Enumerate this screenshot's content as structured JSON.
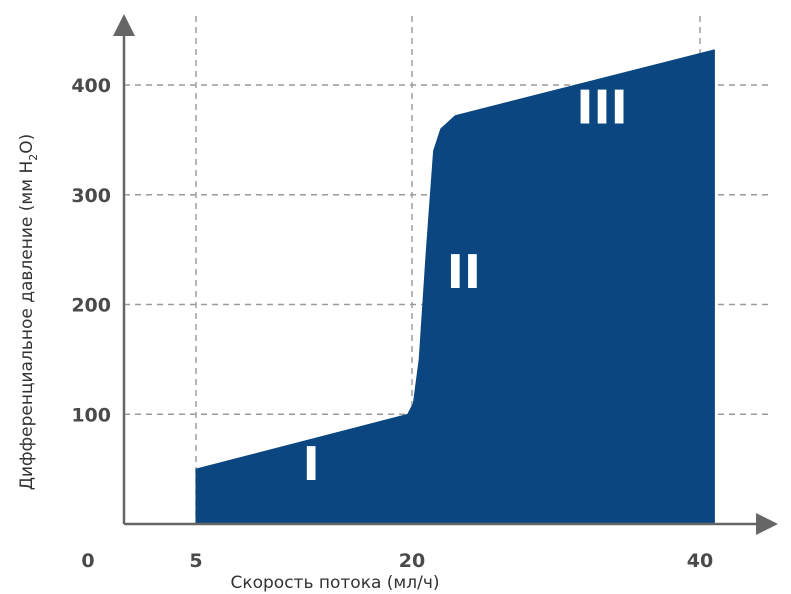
{
  "chart_data": {
    "type": "area",
    "title": "",
    "xlabel": "Скорость потока (мл/ч)",
    "ylabel": {
      "prefix": "Дифференциальное давление (мм H",
      "sub": "2",
      "suffix": "O)"
    },
    "origin_label": "0",
    "x_ticks": [
      5,
      20,
      40
    ],
    "y_ticks": [
      100,
      200,
      300,
      400
    ],
    "xlim": [
      0,
      41
    ],
    "ylim": [
      0,
      460
    ],
    "grid": true,
    "series": [
      {
        "points": [
          [
            5,
            50
          ],
          [
            19.7,
            100
          ],
          [
            20.1,
            110
          ],
          [
            20.5,
            150
          ],
          [
            21.0,
            250
          ],
          [
            21.5,
            340
          ],
          [
            22.0,
            360
          ],
          [
            23.0,
            372
          ],
          [
            41.0,
            432
          ]
        ]
      }
    ],
    "region_labels": [
      {
        "text": "I",
        "x": 13,
        "y": 40
      },
      {
        "text": "II",
        "x": 23.6,
        "y": 215
      },
      {
        "text": "III",
        "x": 33.2,
        "y": 365
      }
    ],
    "colors": {
      "fill": "#0b4680",
      "axis": "#666666",
      "grid": "#9a9a9a"
    }
  }
}
